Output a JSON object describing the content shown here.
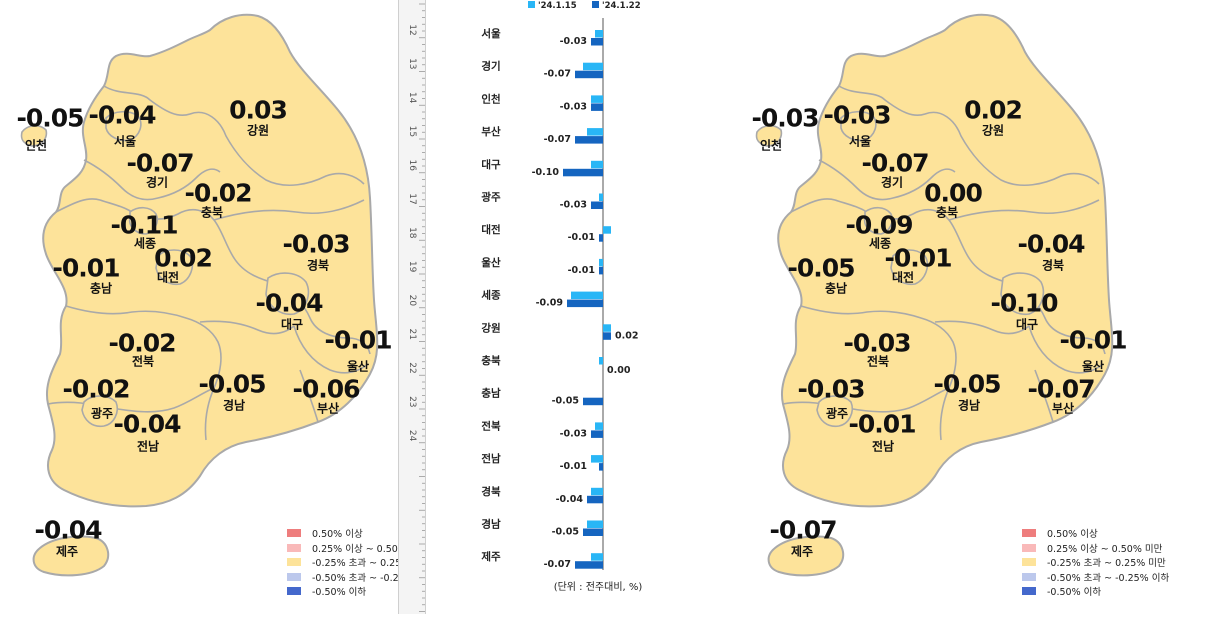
{
  "chart_data": [
    {
      "type": "map",
      "regions": [
        {
          "name": "인천",
          "value": "-0.05"
        },
        {
          "name": "서울",
          "value": "-0.04"
        },
        {
          "name": "강원",
          "value": "0.03"
        },
        {
          "name": "경기",
          "value": "-0.07"
        },
        {
          "name": "충북",
          "value": "-0.02"
        },
        {
          "name": "세종",
          "value": "-0.11"
        },
        {
          "name": "대전",
          "value": "0.02"
        },
        {
          "name": "충남",
          "value": "-0.01"
        },
        {
          "name": "경북",
          "value": "-0.03"
        },
        {
          "name": "대구",
          "value": "-0.04"
        },
        {
          "name": "울산",
          "value": "-0.01"
        },
        {
          "name": "전북",
          "value": "-0.02"
        },
        {
          "name": "광주",
          "value": "-0.02"
        },
        {
          "name": "경남",
          "value": "-0.05"
        },
        {
          "name": "부산",
          "value": "-0.06"
        },
        {
          "name": "전남",
          "value": "-0.04"
        },
        {
          "name": "제주",
          "value": "-0.04"
        }
      ],
      "legend": [
        "0.50% 이상",
        "0.25% 이상 ~ 0.50",
        "-0.25% 초과 ~ 0.25",
        "-0.50% 초과 ~ -0.2",
        "-0.50% 이하"
      ]
    },
    {
      "type": "bar",
      "orientation": "horizontal",
      "legend_position": "top",
      "unit_note": "(단위 : 전주대비, %)",
      "categories": [
        "서울",
        "경기",
        "인천",
        "부산",
        "대구",
        "광주",
        "대전",
        "울산",
        "세종",
        "강원",
        "충북",
        "충남",
        "전북",
        "전남",
        "경북",
        "경남",
        "제주"
      ],
      "series": [
        {
          "name": "'24.1.15",
          "values": [
            -0.02,
            -0.05,
            -0.03,
            -0.04,
            -0.03,
            -0.01,
            0.02,
            -0.01,
            -0.08,
            0.02,
            -0.01,
            0.0,
            -0.02,
            -0.03,
            -0.03,
            -0.04,
            -0.03
          ]
        },
        {
          "name": "'24.1.22",
          "values": [
            -0.03,
            -0.07,
            -0.03,
            -0.07,
            -0.1,
            -0.03,
            -0.01,
            -0.01,
            -0.09,
            0.02,
            0.0,
            -0.05,
            -0.03,
            -0.01,
            -0.04,
            -0.05,
            -0.07
          ]
        }
      ],
      "value_labels": [
        "-0.03",
        "-0.07",
        "-0.03",
        "-0.07",
        "-0.10",
        "-0.03",
        "-0.01",
        "-0.01",
        "-0.09",
        "0.02",
        "0.00",
        "-0.05",
        "-0.03",
        "-0.01",
        "-0.04",
        "-0.05",
        "-0.07"
      ]
    },
    {
      "type": "map",
      "regions": [
        {
          "name": "인천",
          "value": "-0.03"
        },
        {
          "name": "서울",
          "value": "-0.03"
        },
        {
          "name": "강원",
          "value": "0.02"
        },
        {
          "name": "경기",
          "value": "-0.07"
        },
        {
          "name": "충북",
          "value": "0.00"
        },
        {
          "name": "세종",
          "value": "-0.09"
        },
        {
          "name": "대전",
          "value": "-0.01"
        },
        {
          "name": "충남",
          "value": "-0.05"
        },
        {
          "name": "경북",
          "value": "-0.04"
        },
        {
          "name": "대구",
          "value": "-0.10"
        },
        {
          "name": "울산",
          "value": "-0.01"
        },
        {
          "name": "전북",
          "value": "-0.03"
        },
        {
          "name": "광주",
          "value": "-0.03"
        },
        {
          "name": "경남",
          "value": "-0.05"
        },
        {
          "name": "부산",
          "value": "-0.07"
        },
        {
          "name": "전남",
          "value": "-0.01"
        },
        {
          "name": "제주",
          "value": "-0.07"
        }
      ],
      "legend": [
        "0.50% 이상",
        "0.25% 이상 ~ 0.50% 미만",
        "-0.25% 초과 ~ 0.25% 미만",
        "-0.50% 초과 ~ -0.25% 이하",
        "-0.50% 이하"
      ]
    }
  ],
  "ruler_ticks": [
    "12",
    "13",
    "14",
    "15",
    "16",
    "17",
    "18",
    "19",
    "20",
    "21",
    "22",
    "23",
    "24"
  ],
  "colors": {
    "map_fill": "#fde39a",
    "map_stroke": "#a9a9a9",
    "series_1": "#29b6f6",
    "series_2": "#1565c0",
    "legend": [
      "#ee7d7d",
      "#f9b9b9",
      "#fde39a",
      "#bcc8ec",
      "#4468cc"
    ]
  }
}
